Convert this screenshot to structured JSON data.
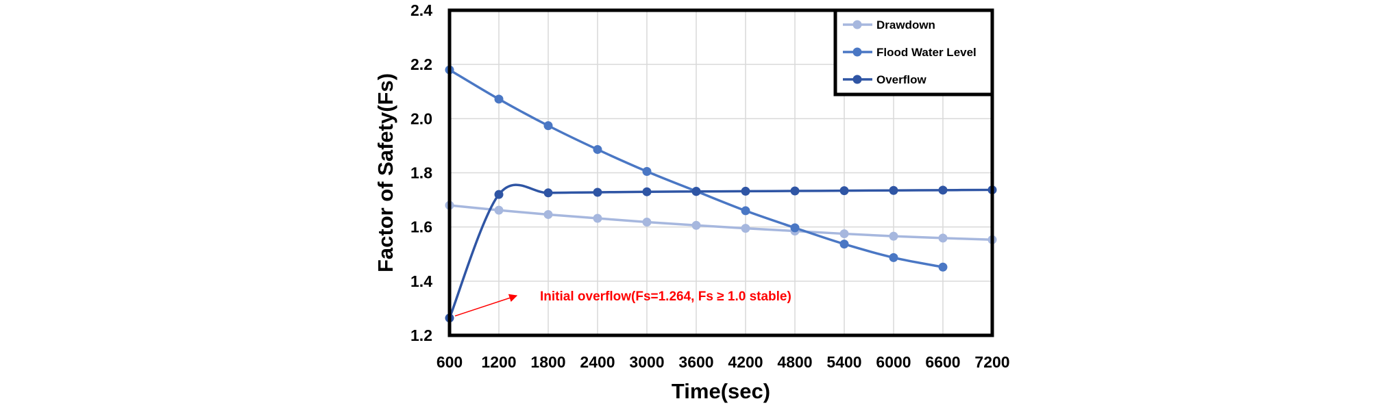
{
  "chart_data": {
    "type": "line",
    "xlabel": "Time(sec)",
    "ylabel": "Factor of Safety(Fs)",
    "x_ticks": [
      "600",
      "1200",
      "1800",
      "2400",
      "3000",
      "3600",
      "4200",
      "4800",
      "5400",
      "6000",
      "6600",
      "7200"
    ],
    "y_ticks": [
      "1.2",
      "1.4",
      "1.6",
      "1.8",
      "2.0",
      "2.2",
      "2.4"
    ],
    "xlim": [
      600,
      7200
    ],
    "ylim": [
      1.2,
      2.4
    ],
    "grid": true,
    "legend_position": "top-right",
    "series": [
      {
        "name": "Drawdown",
        "color": "#a6b7de",
        "x": [
          600,
          1200,
          1800,
          2400,
          3000,
          3600,
          4200,
          4800,
          5400,
          6000,
          6600,
          7200
        ],
        "y": [
          1.68,
          1.662,
          1.646,
          1.632,
          1.618,
          1.606,
          1.595,
          1.585,
          1.575,
          1.566,
          1.559,
          1.553
        ]
      },
      {
        "name": "Flood Water Level",
        "color": "#4a77c4",
        "x": [
          600,
          1200,
          1800,
          2400,
          3000,
          3600,
          4200,
          4800,
          5400,
          6000,
          6600
        ],
        "y": [
          2.18,
          2.072,
          1.974,
          1.886,
          1.805,
          1.732,
          1.66,
          1.597,
          1.537,
          1.487,
          1.452
        ]
      },
      {
        "name": "Overflow",
        "color": "#2f55a4",
        "x": [
          600,
          1200,
          1800,
          2400,
          3000,
          3600,
          4200,
          4800,
          5400,
          6000,
          6600,
          7200
        ],
        "y": [
          1.264,
          1.72,
          1.726,
          1.728,
          1.73,
          1.731,
          1.732,
          1.733,
          1.734,
          1.735,
          1.736,
          1.737
        ]
      }
    ],
    "annotation": {
      "text": "Initial overflow(Fs=1.264, Fs ≥ 1.0 stable)",
      "color": "#ff0000",
      "points_to": {
        "x": 600,
        "y": 1.264
      }
    }
  }
}
